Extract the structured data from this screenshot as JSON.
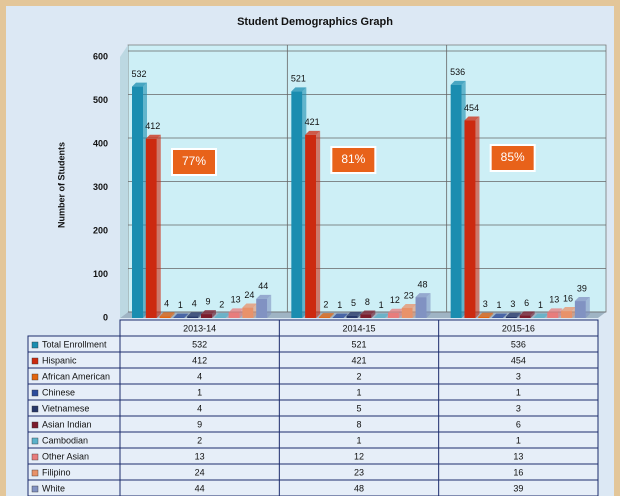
{
  "chart_data": {
    "type": "bar",
    "title": "Student Demographics Graph",
    "y_axis_label": "Number of Students",
    "categories": [
      "2013-14",
      "2014-15",
      "2015-16"
    ],
    "series": [
      {
        "name": "Total Enrollment",
        "color": "#1b8db0",
        "values": [
          532,
          521,
          536
        ]
      },
      {
        "name": "Hispanic",
        "color": "#cc2a10",
        "values": [
          412,
          421,
          454
        ]
      },
      {
        "name": "African American",
        "color": "#e2640f",
        "values": [
          4,
          2,
          3
        ]
      },
      {
        "name": "Chinese",
        "color": "#2c4c9c",
        "values": [
          1,
          1,
          1
        ]
      },
      {
        "name": "Vietnamese",
        "color": "#27386a",
        "values": [
          4,
          5,
          3
        ]
      },
      {
        "name": "Asian Indian",
        "color": "#7c1c2c",
        "values": [
          9,
          8,
          6
        ]
      },
      {
        "name": "Cambodian",
        "color": "#5ab2ca",
        "values": [
          2,
          1,
          1
        ]
      },
      {
        "name": "Other Asian",
        "color": "#e87c7c",
        "values": [
          13,
          12,
          13
        ]
      },
      {
        "name": "Filipino",
        "color": "#e8926a",
        "values": [
          24,
          23,
          16
        ]
      },
      {
        "name": "White",
        "color": "#8192c2",
        "values": [
          44,
          48,
          39
        ]
      }
    ],
    "annotations": [
      "77%",
      "81%",
      "85%"
    ],
    "ylim": [
      0,
      600
    ],
    "yticks": [
      0,
      100,
      200,
      300,
      400,
      500,
      600
    ],
    "grid": true
  }
}
